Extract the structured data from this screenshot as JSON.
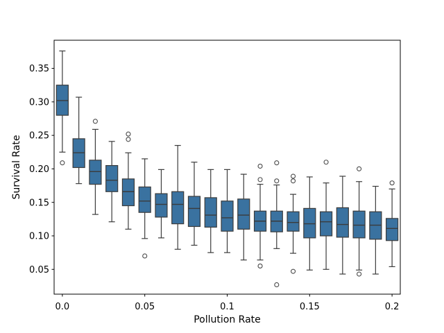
{
  "figure": {
    "background": "#ffffff",
    "box_fill": "#3a72a0",
    "box_edge": "#3b3b3b",
    "median_color": "#3b3b3b",
    "whisker_color": "#3b3b3b",
    "outlier_edge": "#4a4a4a",
    "spine_color": "#000000",
    "tick_color": "#000000"
  },
  "chart_data": {
    "type": "boxplot",
    "orientation": "vertical",
    "title": "",
    "xlabel": "Pollution Rate",
    "ylabel": "Survival Rate",
    "grid": false,
    "legend": null,
    "xlim": [
      -0.005,
      0.205
    ],
    "ylim": [
      0.013,
      0.392
    ],
    "xticks": {
      "values": [
        0.0,
        0.05,
        0.1,
        0.15,
        0.2
      ],
      "labels": [
        "0.0",
        "0.05",
        "0.1",
        "0.15",
        "0.2"
      ]
    },
    "yticks": {
      "values": [
        0.05,
        0.1,
        0.15,
        0.2,
        0.25,
        0.3,
        0.35
      ],
      "labels": [
        "0.05",
        "0.10",
        "0.15",
        "0.20",
        "0.25",
        "0.30",
        "0.35"
      ]
    },
    "boxes": [
      {
        "x": 0.0,
        "whisker_low": 0.225,
        "q1": 0.28,
        "median": 0.302,
        "q3": 0.325,
        "whisker_high": 0.376,
        "outliers": [
          0.209
        ]
      },
      {
        "x": 0.01,
        "whisker_low": 0.178,
        "q1": 0.202,
        "median": 0.224,
        "q3": 0.245,
        "whisker_high": 0.307,
        "outliers": []
      },
      {
        "x": 0.02,
        "whisker_low": 0.132,
        "q1": 0.177,
        "median": 0.196,
        "q3": 0.213,
        "whisker_high": 0.259,
        "outliers": [
          0.271
        ]
      },
      {
        "x": 0.03,
        "whisker_low": 0.121,
        "q1": 0.166,
        "median": 0.183,
        "q3": 0.205,
        "whisker_high": 0.241,
        "outliers": []
      },
      {
        "x": 0.04,
        "whisker_low": 0.11,
        "q1": 0.145,
        "median": 0.166,
        "q3": 0.185,
        "whisker_high": 0.224,
        "outliers": [
          0.252,
          0.244
        ]
      },
      {
        "x": 0.05,
        "whisker_low": 0.096,
        "q1": 0.135,
        "median": 0.152,
        "q3": 0.173,
        "whisker_high": 0.215,
        "outliers": [
          0.07
        ]
      },
      {
        "x": 0.06,
        "whisker_low": 0.097,
        "q1": 0.128,
        "median": 0.147,
        "q3": 0.163,
        "whisker_high": 0.199,
        "outliers": []
      },
      {
        "x": 0.07,
        "whisker_low": 0.08,
        "q1": 0.118,
        "median": 0.147,
        "q3": 0.166,
        "whisker_high": 0.235,
        "outliers": []
      },
      {
        "x": 0.08,
        "whisker_low": 0.086,
        "q1": 0.114,
        "median": 0.141,
        "q3": 0.159,
        "whisker_high": 0.21,
        "outliers": []
      },
      {
        "x": 0.09,
        "whisker_low": 0.075,
        "q1": 0.113,
        "median": 0.131,
        "q3": 0.157,
        "whisker_high": 0.199,
        "outliers": []
      },
      {
        "x": 0.1,
        "whisker_low": 0.075,
        "q1": 0.107,
        "median": 0.127,
        "q3": 0.152,
        "whisker_high": 0.199,
        "outliers": []
      },
      {
        "x": 0.11,
        "whisker_low": 0.064,
        "q1": 0.11,
        "median": 0.131,
        "q3": 0.155,
        "whisker_high": 0.192,
        "outliers": []
      },
      {
        "x": 0.12,
        "whisker_low": 0.064,
        "q1": 0.107,
        "median": 0.122,
        "q3": 0.137,
        "whisker_high": 0.177,
        "outliers": [
          0.204,
          0.184,
          0.055
        ]
      },
      {
        "x": 0.13,
        "whisker_low": 0.081,
        "q1": 0.106,
        "median": 0.122,
        "q3": 0.137,
        "whisker_high": 0.176,
        "outliers": [
          0.209,
          0.182,
          0.027
        ]
      },
      {
        "x": 0.14,
        "whisker_low": 0.074,
        "q1": 0.107,
        "median": 0.12,
        "q3": 0.136,
        "whisker_high": 0.162,
        "outliers": [
          0.189,
          0.182,
          0.047
        ]
      },
      {
        "x": 0.15,
        "whisker_low": 0.049,
        "q1": 0.097,
        "median": 0.118,
        "q3": 0.141,
        "whisker_high": 0.188,
        "outliers": []
      },
      {
        "x": 0.16,
        "whisker_low": 0.05,
        "q1": 0.1,
        "median": 0.121,
        "q3": 0.136,
        "whisker_high": 0.179,
        "outliers": [
          0.21
        ]
      },
      {
        "x": 0.17,
        "whisker_low": 0.043,
        "q1": 0.098,
        "median": 0.117,
        "q3": 0.142,
        "whisker_high": 0.189,
        "outliers": []
      },
      {
        "x": 0.18,
        "whisker_low": 0.049,
        "q1": 0.097,
        "median": 0.116,
        "q3": 0.137,
        "whisker_high": 0.181,
        "outliers": [
          0.2,
          0.043
        ]
      },
      {
        "x": 0.19,
        "whisker_low": 0.043,
        "q1": 0.095,
        "median": 0.116,
        "q3": 0.136,
        "whisker_high": 0.174,
        "outliers": []
      },
      {
        "x": 0.2,
        "whisker_low": 0.054,
        "q1": 0.093,
        "median": 0.111,
        "q3": 0.126,
        "whisker_high": 0.17,
        "outliers": [
          0.179
        ]
      }
    ]
  }
}
